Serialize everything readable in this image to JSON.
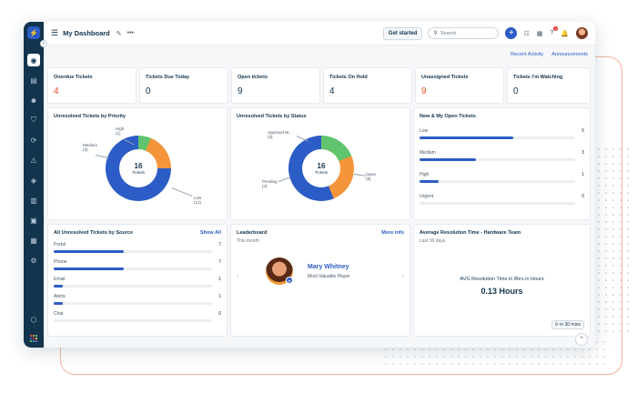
{
  "topbar": {
    "title": "My Dashboard",
    "get_started": "Get started",
    "search_placeholder": "Search",
    "plus": "+",
    "notification_count": "1"
  },
  "subbar": {
    "recent_activity": "Recent Activity",
    "announcements": "Announcements"
  },
  "kpis": [
    {
      "label": "Overdue Tickets",
      "value": "4",
      "color": "#e4501f"
    },
    {
      "label": "Tickets Due Today",
      "value": "0",
      "color": "#12344d"
    },
    {
      "label": "Open tickets",
      "value": "9",
      "color": "#12344d"
    },
    {
      "label": "Tickets On Hold",
      "value": "4",
      "color": "#12344d"
    },
    {
      "label": "Unassigned Tickets",
      "value": "9",
      "color": "#e4501f"
    },
    {
      "label": "Tickets I'm Watching",
      "value": "0",
      "color": "#12344d"
    }
  ],
  "priority_chart": {
    "title": "Unresolved Tickets by Priority",
    "center_number": "16",
    "center_label": "Tickets",
    "labels": {
      "high": "High",
      "high_count": "(1)",
      "medium": "Medium",
      "medium_count": "(3)",
      "low": "Low",
      "low_count": "(12)"
    }
  },
  "status_chart": {
    "title": "Unresolved Tickets by Status",
    "center_number": "16",
    "center_label": "Tickets",
    "labels": {
      "approval": "Approval W...",
      "approval_count": "(3)",
      "pending": "Pending",
      "pending_count": "(4)",
      "open": "Open",
      "open_count": "(9)"
    }
  },
  "chart_data": [
    {
      "type": "pie",
      "title": "Unresolved Tickets by Priority",
      "categories": [
        "High",
        "Medium",
        "Low"
      ],
      "values": [
        1,
        3,
        12
      ],
      "colors": [
        "#5fc46d",
        "#f4953c",
        "#2c5cc5"
      ]
    },
    {
      "type": "pie",
      "title": "Unresolved Tickets by Status",
      "categories": [
        "Approval W...",
        "Pending",
        "Open"
      ],
      "values": [
        3,
        4,
        9
      ],
      "colors": [
        "#5fc46d",
        "#f4953c",
        "#2c5cc5"
      ]
    },
    {
      "type": "bar",
      "title": "New & My Open Tickets",
      "categories": [
        "Low",
        "Medium",
        "High",
        "Urgent"
      ],
      "values": [
        5,
        3,
        1,
        0
      ]
    },
    {
      "type": "bar",
      "title": "All Unresolved Tickets by Source",
      "categories": [
        "Portal",
        "Phone",
        "Email",
        "Alerts",
        "Chat"
      ],
      "values": [
        7,
        7,
        1,
        1,
        0
      ]
    }
  ],
  "new_open": {
    "title": "New & My Open Tickets",
    "rows": [
      {
        "label": "Low",
        "count": "5",
        "fraction": 0.6
      },
      {
        "label": "Medium",
        "count": "3",
        "fraction": 0.36
      },
      {
        "label": "High",
        "count": "1",
        "fraction": 0.12
      },
      {
        "label": "Urgent",
        "count": "0",
        "fraction": 0
      }
    ]
  },
  "by_source": {
    "title": "All Unresolved Tickets by Source",
    "link": "Show All",
    "rows": [
      {
        "label": "Portal",
        "count": "7",
        "fraction": 0.44
      },
      {
        "label": "Phone",
        "count": "7",
        "fraction": 0.44
      },
      {
        "label": "Email",
        "count": "1",
        "fraction": 0.06
      },
      {
        "label": "Alerts",
        "count": "1",
        "fraction": 0.06
      },
      {
        "label": "Chat",
        "count": "0",
        "fraction": 0
      }
    ]
  },
  "leaderboard": {
    "title": "Leaderboard",
    "link": "More info",
    "period": "This month",
    "name": "Mary Whitney",
    "role": "Most Valuable Player",
    "prev": "‹",
    "next": "›"
  },
  "resolution": {
    "title": "Average Resolution Time - Hardware Team",
    "period": "Last 30 days",
    "metric_label": "AVG Resolution Time in 8hrs in Hours",
    "metric_value": "0.13 Hours",
    "refresh": "in 30 mins"
  },
  "icons": {
    "logo": "⚡",
    "hamburger": "☰",
    "edit": "✎",
    "more": "•••",
    "search": "⚲",
    "list": "☷",
    "calendar": "▦",
    "help": "?",
    "bell": "🔔",
    "scroll_up": "⌃",
    "collapse": "›"
  }
}
